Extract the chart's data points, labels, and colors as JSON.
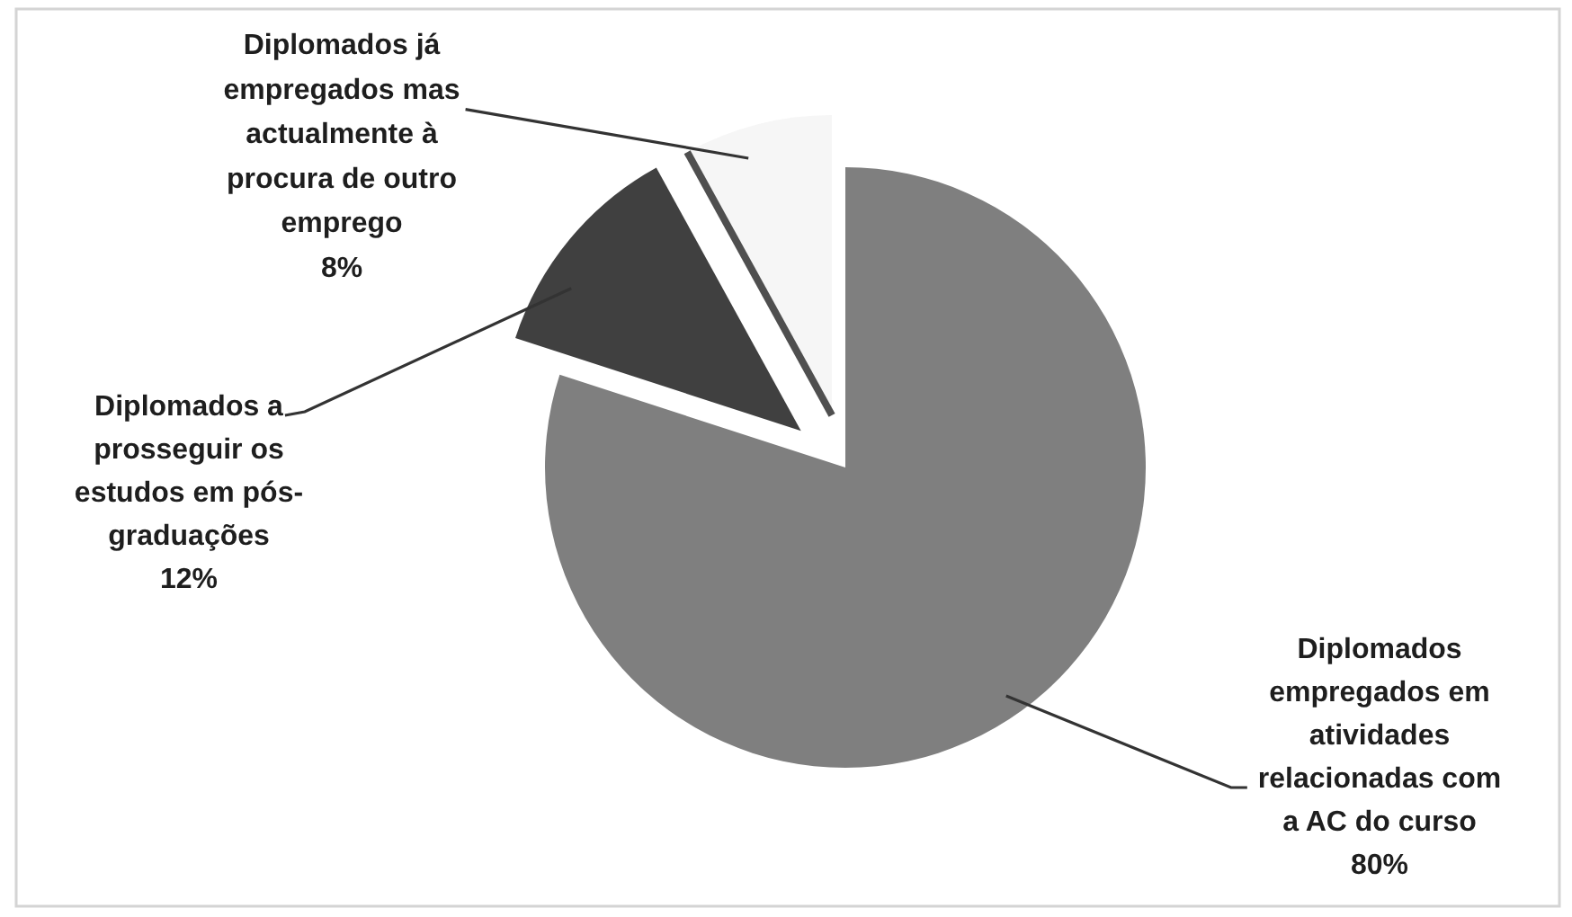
{
  "chart_data": {
    "type": "pie",
    "categories": [
      "Diplomados empregados em atividades relacionadas com a AC do curso",
      "Diplomados a prosseguir os estudos em pós-graduações",
      "Diplomados já empregados mas actualmente à procura de outro emprego"
    ],
    "values": [
      80,
      12,
      8
    ],
    "colors": [
      "#7f7f7f",
      "#404040",
      "#f6f6f6"
    ],
    "value_labels": [
      "80%",
      "12%",
      "8%"
    ]
  }
}
